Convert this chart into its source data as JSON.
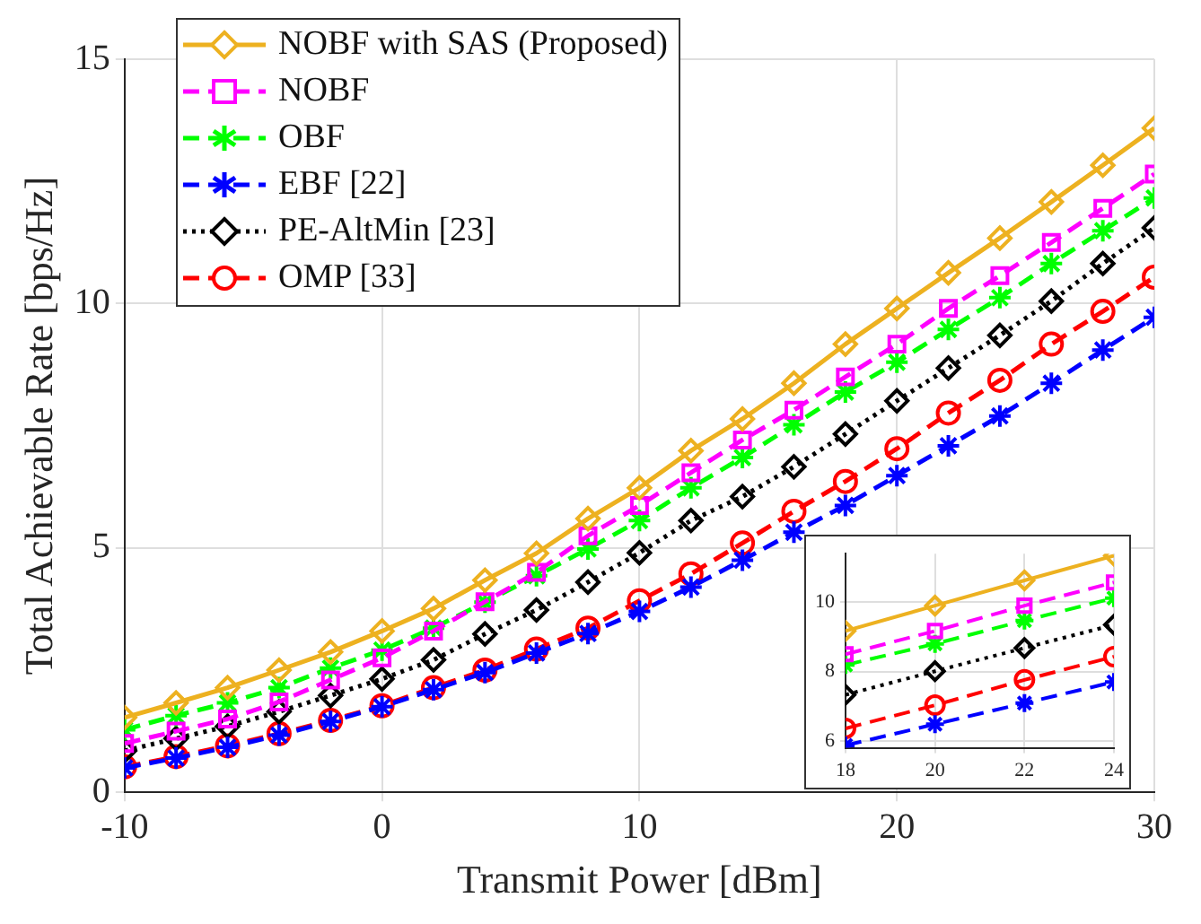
{
  "chart_data": [
    {
      "type": "line",
      "xlabel": "Transmit Power [dBm]",
      "ylabel": "Total Achievable Rate [bps/Hz]",
      "x": [
        -10,
        -8,
        -6,
        -4,
        -2,
        0,
        2,
        4,
        6,
        8,
        10,
        12,
        14,
        16,
        18,
        20,
        22,
        24,
        26,
        28,
        30
      ],
      "xlim": [
        -10,
        30
      ],
      "xticks": [
        -10,
        0,
        10,
        20,
        30
      ],
      "ylim": [
        0,
        15
      ],
      "yticks": [
        0,
        5,
        10,
        15
      ],
      "grid": true,
      "legend": "top left",
      "series": [
        {
          "name": "NOBF with SAS (Proposed)",
          "color": "#edb120",
          "marker": "diamond",
          "line_style": "solid",
          "values": [
            1.53,
            1.83,
            2.14,
            2.5,
            2.87,
            3.3,
            3.76,
            4.34,
            4.89,
            5.6,
            6.23,
            6.99,
            7.64,
            8.37,
            9.17,
            9.9,
            10.63,
            11.34,
            12.08,
            12.83,
            13.59
          ]
        },
        {
          "name": "NOBF",
          "color": "#ff00ff",
          "marker": "square",
          "line_style": "dashed",
          "values": [
            1.0,
            1.25,
            1.5,
            1.85,
            2.3,
            2.75,
            3.3,
            3.9,
            4.5,
            5.25,
            5.87,
            6.54,
            7.21,
            7.82,
            8.5,
            9.17,
            9.9,
            10.57,
            11.25,
            11.95,
            12.65
          ]
        },
        {
          "name": "OBF",
          "color": "#00ff00",
          "marker": "cross",
          "line_style": "dashed",
          "values": [
            1.28,
            1.57,
            1.83,
            2.14,
            2.54,
            2.91,
            3.36,
            3.89,
            4.43,
            4.98,
            5.56,
            6.23,
            6.85,
            7.52,
            8.19,
            8.8,
            9.47,
            10.12,
            10.82,
            11.49,
            12.16
          ]
        },
        {
          "name": "EBF [22]",
          "color": "#0000ff",
          "marker": "cross",
          "line_style": "dashed",
          "values": [
            0.5,
            0.7,
            0.92,
            1.17,
            1.45,
            1.75,
            2.1,
            2.45,
            2.85,
            3.25,
            3.7,
            4.2,
            4.75,
            5.32,
            5.87,
            6.48,
            7.09,
            7.7,
            8.37,
            9.05,
            9.72
          ]
        },
        {
          "name": "PE-AltMin [23]",
          "color": "#000000",
          "marker": "diamond",
          "line_style": "dotted",
          "values": [
            0.85,
            1.1,
            1.35,
            1.65,
            1.98,
            2.32,
            2.71,
            3.24,
            3.73,
            4.3,
            4.9,
            5.56,
            6.05,
            6.66,
            7.33,
            8.01,
            8.68,
            9.35,
            10.05,
            10.82,
            11.55
          ]
        },
        {
          "name": "OMP [33]",
          "color": "#ff0000",
          "marker": "circle",
          "line_style": "dashed",
          "values": [
            0.52,
            0.73,
            0.95,
            1.2,
            1.47,
            1.77,
            2.14,
            2.5,
            2.93,
            3.36,
            3.92,
            4.47,
            5.1,
            5.75,
            6.36,
            7.03,
            7.76,
            8.43,
            9.17,
            9.84,
            10.54
          ]
        }
      ]
    },
    {
      "type": "line",
      "x": [
        18,
        20,
        22,
        24
      ],
      "xlim": [
        18,
        24
      ],
      "xticks": [
        18,
        20,
        22,
        24
      ],
      "ylim": [
        5.8,
        11.4
      ],
      "yticks": [
        6,
        8,
        10
      ],
      "grid": true,
      "series": [
        {
          "color": "#edb120",
          "marker": "diamond",
          "line_style": "solid",
          "values": [
            9.17,
            9.9,
            10.63,
            11.34
          ]
        },
        {
          "color": "#ff00ff",
          "marker": "square",
          "line_style": "dashed",
          "values": [
            8.5,
            9.17,
            9.9,
            10.57
          ]
        },
        {
          "color": "#00ff00",
          "marker": "cross",
          "line_style": "dashed",
          "values": [
            8.19,
            8.8,
            9.47,
            10.12
          ]
        },
        {
          "color": "#0000ff",
          "marker": "cross",
          "line_style": "dashed",
          "values": [
            5.87,
            6.48,
            7.09,
            7.7
          ]
        },
        {
          "color": "#000000",
          "marker": "diamond",
          "line_style": "dotted",
          "values": [
            7.33,
            8.01,
            8.68,
            9.35
          ]
        },
        {
          "color": "#ff0000",
          "marker": "circle",
          "line_style": "dashed",
          "values": [
            6.36,
            7.03,
            7.76,
            8.43
          ]
        }
      ]
    }
  ]
}
